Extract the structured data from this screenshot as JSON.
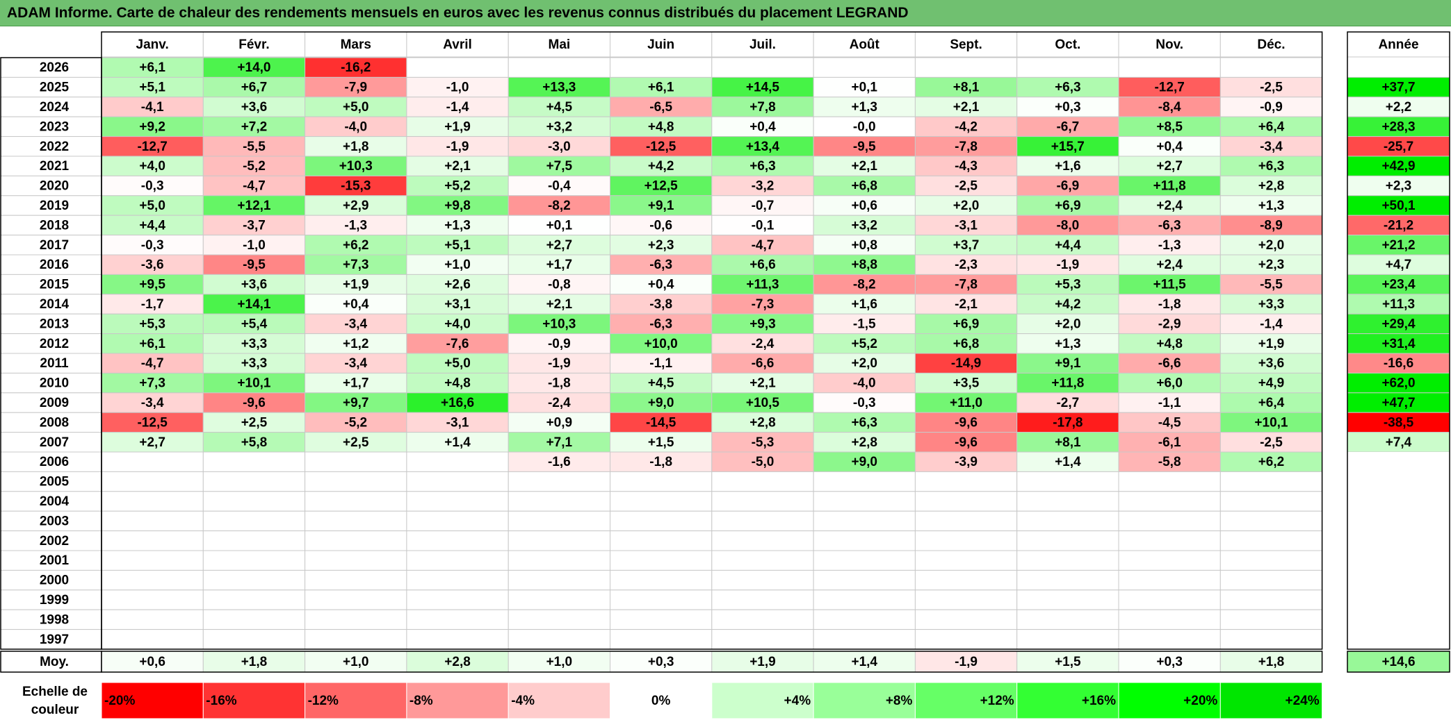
{
  "title": "ADAM Informe. Carte de chaleur des rendements mensuels en euros avec les revenus connus distribués du placement LEGRAND",
  "chart_data": {
    "type": "heatmap",
    "title": "ADAM Informe. Carte de chaleur des rendements mensuels en euros avec les revenus connus distribués du placement LEGRAND",
    "months": [
      "Janv.",
      "Févr.",
      "Mars",
      "Avril",
      "Mai",
      "Juin",
      "Juil.",
      "Août",
      "Sept.",
      "Oct.",
      "Nov.",
      "Déc."
    ],
    "year_header": "Année",
    "rows": [
      {
        "year": "2026",
        "values": [
          6.1,
          14.0,
          -16.2,
          null,
          null,
          null,
          null,
          null,
          null,
          null,
          null,
          null
        ],
        "annual": null
      },
      {
        "year": "2025",
        "values": [
          5.1,
          6.7,
          -7.9,
          -1.0,
          13.3,
          6.1,
          14.5,
          0.1,
          8.1,
          6.3,
          -12.7,
          -2.5
        ],
        "annual": 37.7
      },
      {
        "year": "2024",
        "values": [
          -4.1,
          3.6,
          5.0,
          -1.4,
          4.5,
          -6.5,
          7.8,
          1.3,
          2.1,
          0.3,
          -8.4,
          -0.9
        ],
        "annual": 2.2
      },
      {
        "year": "2023",
        "values": [
          9.2,
          7.2,
          -4.0,
          1.9,
          3.2,
          4.8,
          0.4,
          -0.0,
          -4.2,
          -6.7,
          8.5,
          6.4
        ],
        "annual": 28.3
      },
      {
        "year": "2022",
        "values": [
          -12.7,
          -5.5,
          1.8,
          -1.9,
          -3.0,
          -12.5,
          13.4,
          -9.5,
          -7.8,
          15.7,
          0.4,
          -3.4
        ],
        "annual": -25.7
      },
      {
        "year": "2021",
        "values": [
          4.0,
          -5.2,
          10.3,
          2.1,
          7.5,
          4.2,
          6.3,
          2.1,
          -4.3,
          1.6,
          2.7,
          6.3
        ],
        "annual": 42.9
      },
      {
        "year": "2020",
        "values": [
          -0.3,
          -4.7,
          -15.3,
          5.2,
          -0.4,
          12.5,
          -3.2,
          6.8,
          -2.5,
          -6.9,
          11.8,
          2.8
        ],
        "annual": 2.3
      },
      {
        "year": "2019",
        "values": [
          5.0,
          12.1,
          2.9,
          9.8,
          -8.2,
          9.1,
          -0.7,
          0.6,
          2.0,
          6.9,
          2.4,
          1.3
        ],
        "annual": 50.1
      },
      {
        "year": "2018",
        "values": [
          4.4,
          -3.7,
          -1.3,
          1.3,
          0.1,
          -0.6,
          -0.1,
          3.2,
          -3.1,
          -8.0,
          -6.3,
          -8.9
        ],
        "annual": -21.2
      },
      {
        "year": "2017",
        "values": [
          -0.3,
          -1.0,
          6.2,
          5.1,
          2.7,
          2.3,
          -4.7,
          0.8,
          3.7,
          4.4,
          -1.3,
          2.0
        ],
        "annual": 21.2
      },
      {
        "year": "2016",
        "values": [
          -3.6,
          -9.5,
          7.3,
          1.0,
          1.7,
          -6.3,
          6.6,
          8.8,
          -2.3,
          -1.9,
          2.4,
          2.3
        ],
        "annual": 4.7
      },
      {
        "year": "2015",
        "values": [
          9.5,
          3.6,
          1.9,
          2.6,
          -0.8,
          0.4,
          11.3,
          -8.2,
          -7.8,
          5.3,
          11.5,
          -5.5
        ],
        "annual": 23.4
      },
      {
        "year": "2014",
        "values": [
          -1.7,
          14.1,
          0.4,
          3.1,
          2.1,
          -3.8,
          -7.3,
          1.6,
          -2.1,
          4.2,
          -1.8,
          3.3
        ],
        "annual": 11.3
      },
      {
        "year": "2013",
        "values": [
          5.3,
          5.4,
          -3.4,
          4.0,
          10.3,
          -6.3,
          9.3,
          -1.5,
          6.9,
          2.0,
          -2.9,
          -1.4
        ],
        "annual": 29.4
      },
      {
        "year": "2012",
        "values": [
          6.1,
          3.3,
          1.2,
          -7.6,
          -0.9,
          10.0,
          -2.4,
          5.2,
          6.8,
          1.3,
          4.8,
          1.9
        ],
        "annual": 31.4
      },
      {
        "year": "2011",
        "values": [
          -4.7,
          3.3,
          -3.4,
          5.0,
          -1.9,
          -1.1,
          -6.6,
          2.0,
          -14.9,
          9.1,
          -6.6,
          3.6
        ],
        "annual": -16.6
      },
      {
        "year": "2010",
        "values": [
          7.3,
          10.1,
          1.7,
          4.8,
          -1.8,
          4.5,
          2.1,
          -4.0,
          3.5,
          11.8,
          6.0,
          4.9
        ],
        "annual": 62.0
      },
      {
        "year": "2009",
        "values": [
          -3.4,
          -9.6,
          9.7,
          16.6,
          -2.4,
          9.0,
          10.5,
          -0.3,
          11.0,
          -2.7,
          -1.1,
          6.4
        ],
        "annual": 47.7
      },
      {
        "year": "2008",
        "values": [
          -12.5,
          2.5,
          -5.2,
          -3.1,
          0.9,
          -14.5,
          2.8,
          6.3,
          -9.6,
          -17.8,
          -4.5,
          10.1
        ],
        "annual": -38.5
      },
      {
        "year": "2007",
        "values": [
          2.7,
          5.8,
          2.5,
          1.4,
          7.1,
          1.5,
          -5.3,
          2.8,
          -9.6,
          8.1,
          -6.1,
          -2.5
        ],
        "annual": 7.4
      },
      {
        "year": "2006",
        "values": [
          null,
          null,
          null,
          null,
          -1.6,
          -1.8,
          -5.0,
          9.0,
          -3.9,
          1.4,
          -5.8,
          6.2
        ],
        "annual": null
      },
      {
        "year": "2005",
        "values": [
          null,
          null,
          null,
          null,
          null,
          null,
          null,
          null,
          null,
          null,
          null,
          null
        ],
        "annual": null
      },
      {
        "year": "2004",
        "values": [
          null,
          null,
          null,
          null,
          null,
          null,
          null,
          null,
          null,
          null,
          null,
          null
        ],
        "annual": null
      },
      {
        "year": "2003",
        "values": [
          null,
          null,
          null,
          null,
          null,
          null,
          null,
          null,
          null,
          null,
          null,
          null
        ],
        "annual": null
      },
      {
        "year": "2002",
        "values": [
          null,
          null,
          null,
          null,
          null,
          null,
          null,
          null,
          null,
          null,
          null,
          null
        ],
        "annual": null
      },
      {
        "year": "2001",
        "values": [
          null,
          null,
          null,
          null,
          null,
          null,
          null,
          null,
          null,
          null,
          null,
          null
        ],
        "annual": null
      },
      {
        "year": "2000",
        "values": [
          null,
          null,
          null,
          null,
          null,
          null,
          null,
          null,
          null,
          null,
          null,
          null
        ],
        "annual": null
      },
      {
        "year": "1999",
        "values": [
          null,
          null,
          null,
          null,
          null,
          null,
          null,
          null,
          null,
          null,
          null,
          null
        ],
        "annual": null
      },
      {
        "year": "1998",
        "values": [
          null,
          null,
          null,
          null,
          null,
          null,
          null,
          null,
          null,
          null,
          null,
          null
        ],
        "annual": null
      },
      {
        "year": "1997",
        "values": [
          null,
          null,
          null,
          null,
          null,
          null,
          null,
          null,
          null,
          null,
          null,
          null
        ],
        "annual": null
      }
    ],
    "average": {
      "label": "Moy.",
      "values": [
        0.6,
        1.8,
        1.0,
        2.8,
        1.0,
        0.3,
        1.9,
        1.4,
        -1.9,
        1.5,
        0.3,
        1.8
      ],
      "annual": 14.6
    },
    "color_scale": {
      "label_line1": "Echelle de",
      "label_line2": "couleur",
      "steps": [
        {
          "label": "-20%",
          "color": "#ff0000",
          "align": "left"
        },
        {
          "label": "-16%",
          "color": "#ff3333",
          "align": "left"
        },
        {
          "label": "-12%",
          "color": "#ff6666",
          "align": "left"
        },
        {
          "label": "-8%",
          "color": "#ff9999",
          "align": "left"
        },
        {
          "label": "-4%",
          "color": "#ffcccc",
          "align": "left"
        },
        {
          "label": "0%",
          "color": "#ffffff",
          "align": "center"
        },
        {
          "label": "+4%",
          "color": "#ccffcc",
          "align": "right"
        },
        {
          "label": "+8%",
          "color": "#99ff99",
          "align": "right"
        },
        {
          "label": "+12%",
          "color": "#66ff66",
          "align": "right"
        },
        {
          "label": "+16%",
          "color": "#33ff33",
          "align": "right"
        },
        {
          "label": "+20%",
          "color": "#00ff00",
          "align": "right"
        },
        {
          "label": "+24%",
          "color": "#00e600",
          "align": "right"
        }
      ]
    },
    "colors": {
      "title_bar": "#70c070",
      "negative_max": "#ff0000",
      "positive_max": "#00ee00",
      "grid": "#c8c8c8"
    }
  }
}
